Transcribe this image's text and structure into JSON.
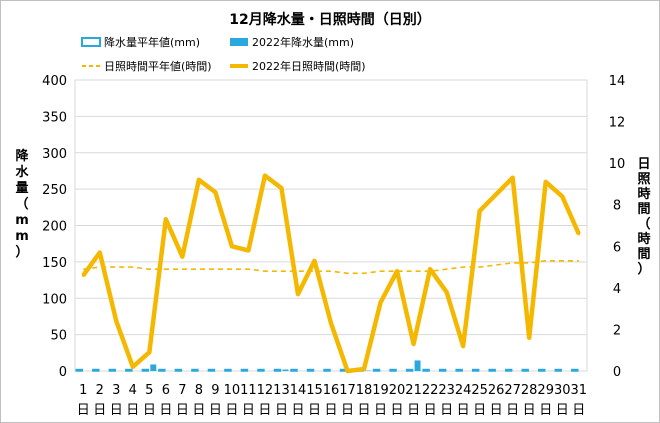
{
  "chart_data": {
    "type": "bar+line",
    "title": "12月降水量・日照時間（日別）",
    "categories": [
      "1",
      "2",
      "3",
      "4",
      "5",
      "6",
      "7",
      "8",
      "9",
      "10",
      "11",
      "12",
      "13",
      "14",
      "15",
      "16",
      "17",
      "18",
      "19",
      "20",
      "21",
      "22",
      "23",
      "24",
      "25",
      "26",
      "27",
      "28",
      "29",
      "30",
      "31"
    ],
    "day_suffix": "日",
    "y_left": {
      "label": "降水量（mm）",
      "min": 0,
      "max": 400,
      "ticks": [
        0,
        50,
        100,
        150,
        200,
        250,
        300,
        350,
        400
      ]
    },
    "y_right": {
      "label": "日照時間（時間）",
      "min": 0,
      "max": 14,
      "ticks": [
        0,
        2,
        4,
        6,
        8,
        10,
        12,
        14
      ]
    },
    "legend": {
      "precip_normal": "降水量平年値(mm)",
      "precip_2022": "2022年降水量(mm)",
      "sun_normal": "日照時間平年値(時間)",
      "sun_2022": "2022年日照時間(時間)"
    },
    "series": [
      {
        "name": "降水量平年値(mm)",
        "type": "bar",
        "axis": "left",
        "color": "#29a8e0",
        "values": [
          2,
          2,
          2,
          2,
          2,
          2,
          2,
          2,
          2,
          2,
          2,
          2,
          2,
          2,
          2,
          2,
          2,
          2,
          2,
          2,
          2,
          2,
          2,
          2,
          2,
          2,
          2,
          2,
          2,
          2,
          2
        ]
      },
      {
        "name": "2022年降水量(mm)",
        "type": "bar",
        "axis": "left",
        "color": "#29a8e0",
        "values": [
          0,
          0,
          0,
          0,
          9,
          0,
          0,
          0,
          0,
          0,
          0,
          0,
          2,
          0,
          0,
          0,
          0,
          0.5,
          0,
          0,
          14.5,
          0,
          0,
          0,
          0,
          0,
          0,
          0,
          0,
          0,
          0
        ]
      },
      {
        "name": "日照時間平年値(時間)",
        "type": "line",
        "axis": "right",
        "color": "#f5b800",
        "dashed": true,
        "values": [
          4.9,
          5.0,
          5.0,
          5.0,
          4.9,
          4.9,
          4.9,
          4.9,
          4.9,
          4.9,
          4.9,
          4.8,
          4.8,
          4.8,
          4.8,
          4.8,
          4.7,
          4.7,
          4.8,
          4.8,
          4.8,
          4.8,
          4.9,
          5.0,
          5.0,
          5.1,
          5.2,
          5.2,
          5.3,
          5.3,
          5.3
        ]
      },
      {
        "name": "2022年日照時間(時間)",
        "type": "line",
        "axis": "right",
        "color": "#f5b800",
        "dashed": false,
        "values": [
          4.6,
          5.7,
          2.4,
          0.2,
          0.9,
          7.3,
          5.5,
          9.2,
          8.6,
          6.0,
          5.8,
          9.4,
          8.8,
          3.7,
          5.3,
          2.3,
          0.0,
          0.1,
          3.3,
          4.8,
          1.3,
          4.9,
          3.8,
          1.2,
          7.7,
          8.5,
          9.3,
          1.6,
          9.1,
          8.4,
          6.6
        ]
      }
    ]
  }
}
